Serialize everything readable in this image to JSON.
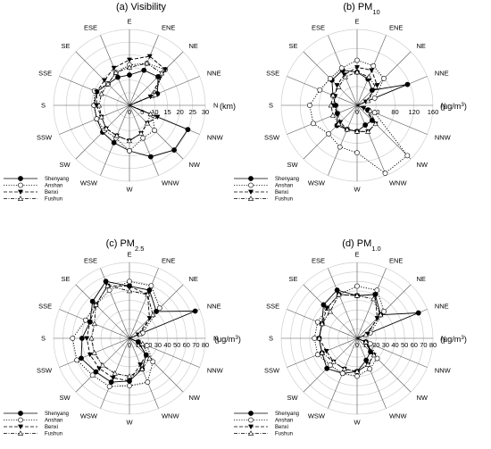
{
  "directions": [
    "N",
    "NNE",
    "NE",
    "ENE",
    "E",
    "ESE",
    "SE",
    "SSE",
    "S",
    "SSW",
    "SW",
    "WSW",
    "W",
    "WNW",
    "NW",
    "NNW"
  ],
  "legend": [
    {
      "name": "Shenyang",
      "dash": "",
      "marker": "circle-filled"
    },
    {
      "name": "Anshan",
      "dash": "1.2,1.6",
      "marker": "circle-open"
    },
    {
      "name": "Benxi",
      "dash": "4,2",
      "marker": "triangle-down-filled"
    },
    {
      "name": "Fushun",
      "dash": "4,1.5,1,1.5",
      "marker": "triangle-up-open"
    }
  ],
  "chart_data": [
    {
      "type": "radar",
      "title": "(a) Visibility",
      "unit": "(km)",
      "ticks": [
        0,
        5,
        10,
        15,
        20,
        25,
        30
      ],
      "rmax": 30,
      "series": [
        {
          "name": "Shenyang",
          "values": [
            0,
            12,
            16,
            15,
            12,
            12,
            12,
            14,
            14,
            14,
            15,
            16,
            18,
            22,
            25,
            25
          ]
        },
        {
          "name": "Anshan",
          "values": [
            0,
            10,
            20,
            18,
            16,
            14,
            12,
            15,
            14,
            14,
            14,
            14,
            18,
            14,
            14,
            10
          ]
        },
        {
          "name": "Benxi",
          "values": [
            0,
            9,
            20,
            21,
            18,
            16,
            14,
            14,
            13,
            12,
            13,
            13,
            14,
            12,
            10,
            12
          ]
        },
        {
          "name": "Fushun",
          "values": [
            0,
            11,
            18,
            18,
            15,
            14,
            12,
            12,
            12,
            12,
            13,
            13,
            14,
            12,
            10,
            9
          ]
        }
      ]
    },
    {
      "type": "radar",
      "title": "(b) PM",
      "title_sub": "10",
      "unit": "(μg/m",
      "unit_sup": "3",
      "unit_end": ")",
      "ticks": [
        0,
        40,
        80,
        120,
        160
      ],
      "rmax": 160,
      "series": [
        {
          "name": "Shenyang",
          "values": [
            0,
            115,
            45,
            60,
            70,
            80,
            75,
            55,
            45,
            45,
            60,
            55,
            55,
            45,
            45,
            25
          ]
        },
        {
          "name": "Anshan",
          "values": [
            0,
            40,
            80,
            90,
            95,
            85,
            80,
            85,
            100,
            100,
            85,
            95,
            100,
            155,
            150,
            40
          ]
        },
        {
          "name": "Benxi",
          "values": [
            0,
            20,
            60,
            80,
            80,
            70,
            60,
            50,
            50,
            45,
            50,
            55,
            55,
            60,
            55,
            15
          ]
        },
        {
          "name": "Fushun",
          "values": [
            0,
            25,
            55,
            65,
            70,
            65,
            55,
            55,
            55,
            55,
            55,
            55,
            55,
            60,
            55,
            30
          ]
        }
      ]
    },
    {
      "type": "radar",
      "title": "(c) PM",
      "title_sub": "2.5",
      "unit": "(μg/m",
      "unit_sup": "3",
      "unit_end": ")",
      "ticks": [
        0,
        10,
        20,
        30,
        40,
        50,
        60,
        70,
        80
      ],
      "rmax": 80,
      "series": [
        {
          "name": "Shenyang",
          "values": [
            0,
            75,
            40,
            55,
            55,
            65,
            55,
            45,
            50,
            55,
            50,
            50,
            45,
            35,
            25,
            10
          ]
        },
        {
          "name": "Anshan",
          "values": [
            0,
            15,
            45,
            60,
            60,
            55,
            50,
            50,
            60,
            60,
            55,
            55,
            50,
            50,
            35,
            20
          ]
        },
        {
          "name": "Benxi",
          "values": [
            0,
            10,
            30,
            50,
            55,
            60,
            50,
            45,
            45,
            45,
            45,
            45,
            45,
            30,
            25,
            10
          ]
        },
        {
          "name": "Fushun",
          "values": [
            0,
            12,
            35,
            50,
            50,
            60,
            50,
            40,
            40,
            40,
            40,
            40,
            40,
            35,
            30,
            15
          ]
        }
      ]
    },
    {
      "type": "radar",
      "title": "(d) PM",
      "title_sub": "1.0",
      "unit": "(μg/m",
      "unit_sup": "3",
      "unit_end": ")",
      "ticks": [
        0,
        10,
        20,
        30,
        40,
        50,
        60,
        70,
        80
      ],
      "rmax": 80,
      "series": [
        {
          "name": "Shenyang",
          "values": [
            0,
            70,
            35,
            50,
            45,
            55,
            50,
            40,
            40,
            40,
            45,
            40,
            35,
            25,
            20,
            10
          ]
        },
        {
          "name": "Anshan",
          "values": [
            0,
            15,
            40,
            55,
            55,
            50,
            45,
            45,
            45,
            45,
            40,
            40,
            40,
            35,
            30,
            15
          ]
        },
        {
          "name": "Benxi",
          "values": [
            0,
            12,
            30,
            50,
            45,
            50,
            45,
            40,
            40,
            35,
            35,
            35,
            35,
            30,
            25,
            10
          ]
        },
        {
          "name": "Fushun",
          "values": [
            0,
            10,
            35,
            45,
            45,
            50,
            40,
            40,
            40,
            40,
            35,
            35,
            35,
            30,
            25,
            10
          ]
        }
      ]
    }
  ]
}
